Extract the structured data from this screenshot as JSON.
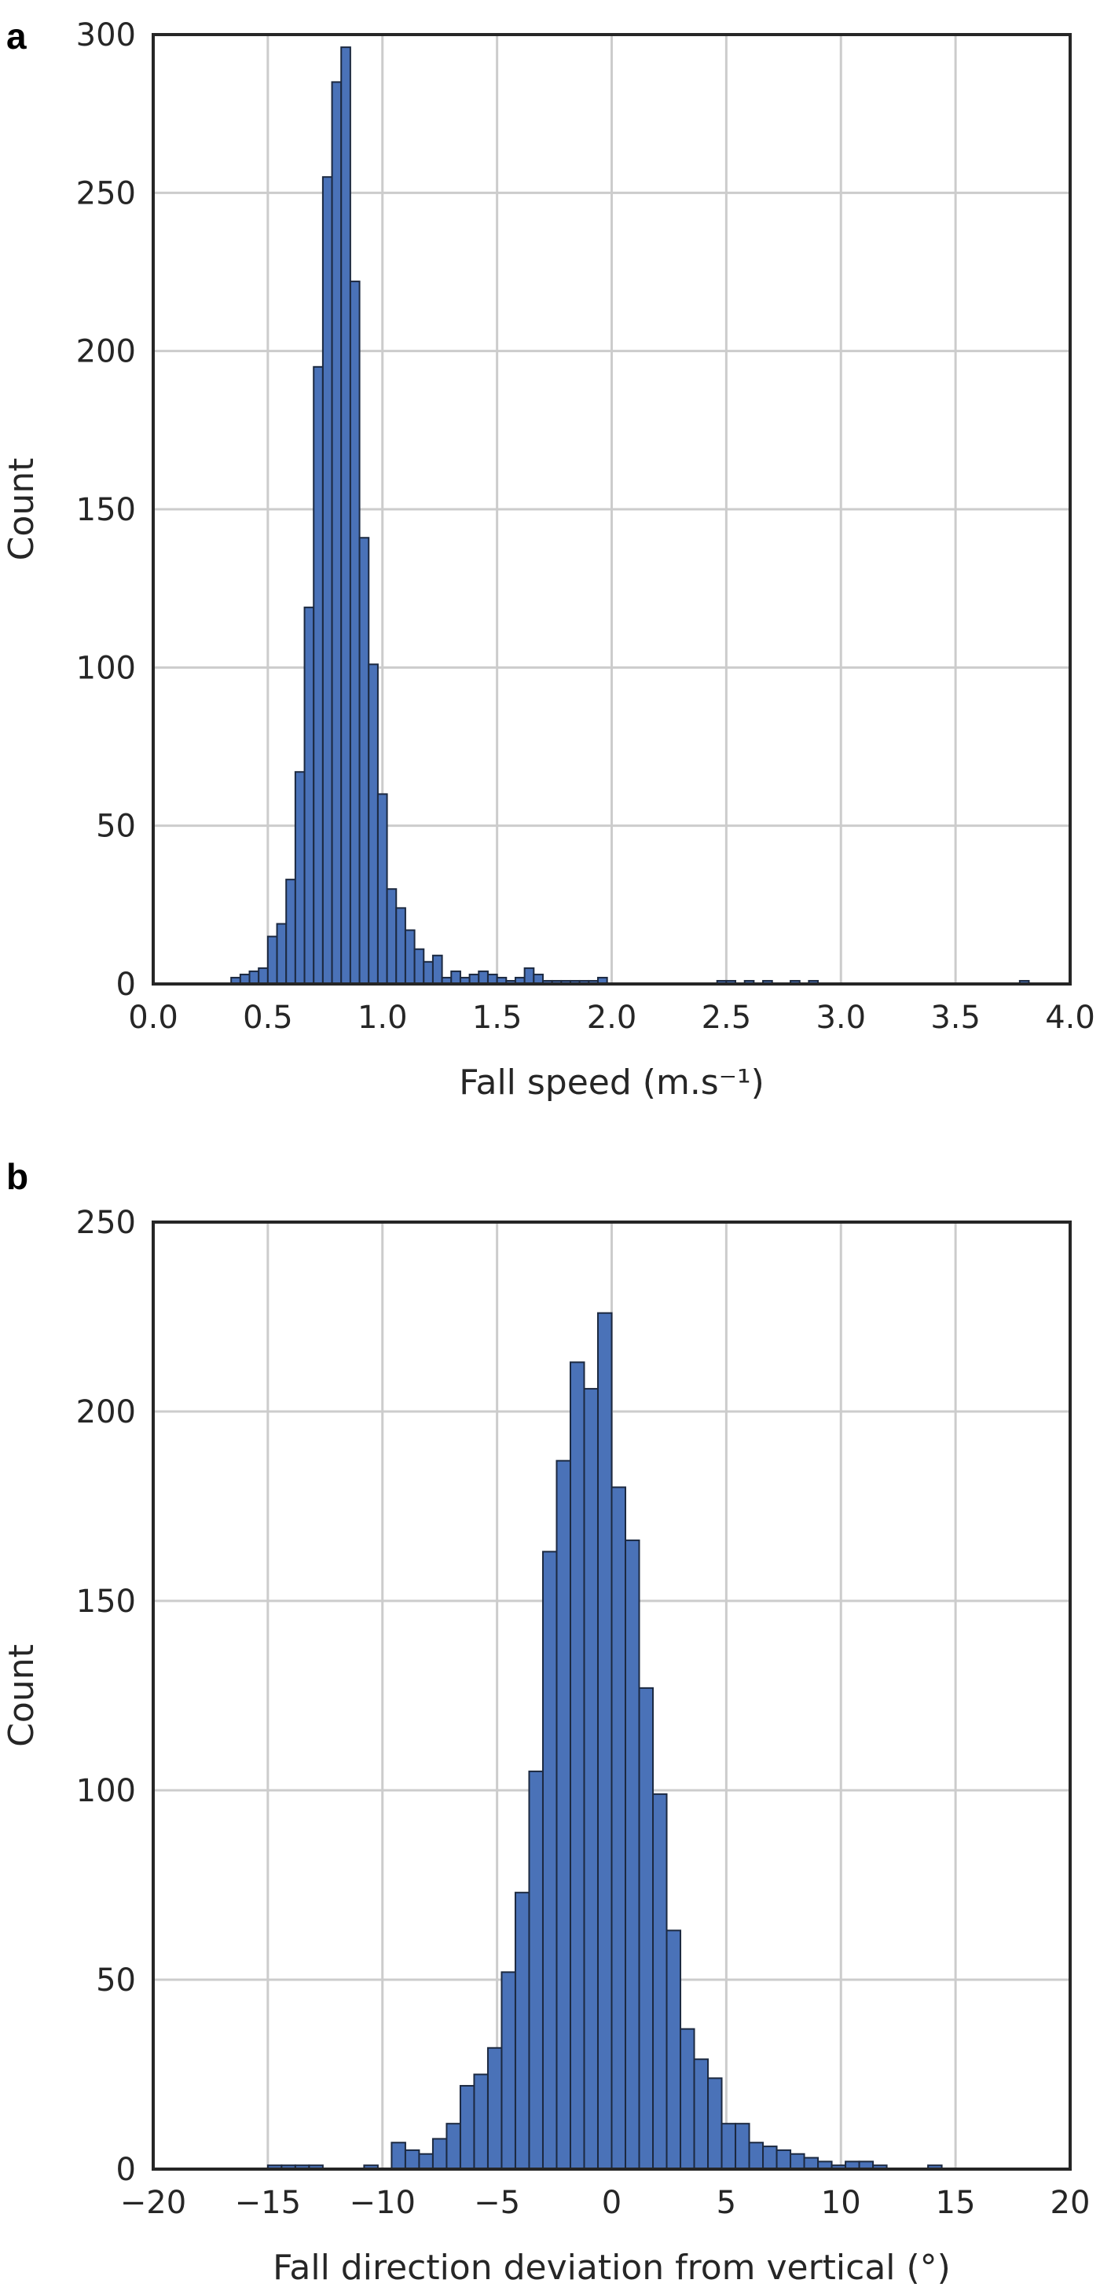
{
  "colors": {
    "bar_fill": "#4a72b8",
    "bar_edge": "#1c2940",
    "grid": "#cccccc",
    "axis": "#262626"
  },
  "chart_data": [
    {
      "type": "bar",
      "panel_label": "a",
      "xlabel": "Fall speed (m.s⁻¹)",
      "ylabel": "Count",
      "xlim": [
        0.0,
        4.0
      ],
      "ylim": [
        0,
        300
      ],
      "xticks": [
        "0.0",
        "0.5",
        "1.0",
        "1.5",
        "2.0",
        "2.5",
        "3.0",
        "3.5",
        "4.0"
      ],
      "yticks": [
        "0",
        "50",
        "100",
        "150",
        "200",
        "250",
        "300"
      ],
      "grid": true,
      "bin_width": 0.04,
      "x": [
        0.36,
        0.4,
        0.44,
        0.48,
        0.52,
        0.56,
        0.6,
        0.64,
        0.68,
        0.72,
        0.76,
        0.8,
        0.84,
        0.88,
        0.92,
        0.96,
        1.0,
        1.04,
        1.08,
        1.12,
        1.16,
        1.2,
        1.24,
        1.28,
        1.32,
        1.36,
        1.4,
        1.44,
        1.48,
        1.52,
        1.56,
        1.6,
        1.64,
        1.68,
        1.72,
        1.76,
        1.8,
        1.84,
        1.88,
        1.92,
        1.96,
        2.48,
        2.52,
        2.6,
        2.68,
        2.8,
        2.88,
        3.8
      ],
      "values": [
        2,
        3,
        4,
        5,
        15,
        19,
        33,
        67,
        119,
        195,
        255,
        285,
        296,
        222,
        141,
        101,
        60,
        30,
        24,
        17,
        11,
        7,
        9,
        2,
        4,
        2,
        3,
        4,
        3,
        2,
        1,
        2,
        5,
        3,
        1,
        1,
        1,
        1,
        1,
        1,
        2,
        1,
        1,
        1,
        1,
        1,
        1,
        1
      ]
    },
    {
      "type": "bar",
      "panel_label": "b",
      "xlabel": "Fall direction deviation from vertical (°)",
      "ylabel": "Count",
      "xlim": [
        -20,
        20
      ],
      "ylim": [
        0,
        250
      ],
      "xticks": [
        "−20",
        "−15",
        "−10",
        "−5",
        "0",
        "5",
        "10",
        "15",
        "20"
      ],
      "yticks": [
        "0",
        "50",
        "100",
        "150",
        "200",
        "250"
      ],
      "grid": true,
      "bin_width": 0.6,
      "x": [
        -14.7,
        -14.1,
        -13.5,
        -12.9,
        -10.5,
        -9.3,
        -8.7,
        -8.1,
        -7.5,
        -6.9,
        -6.3,
        -5.7,
        -5.1,
        -4.5,
        -3.9,
        -3.3,
        -2.7,
        -2.1,
        -1.5,
        -0.9,
        -0.3,
        0.3,
        0.9,
        1.5,
        2.1,
        2.7,
        3.3,
        3.9,
        4.5,
        5.1,
        5.7,
        6.3,
        6.9,
        7.5,
        8.1,
        8.7,
        9.3,
        9.9,
        10.5,
        11.1,
        11.7,
        14.1
      ],
      "values": [
        1,
        1,
        1,
        1,
        1,
        7,
        5,
        4,
        8,
        12,
        22,
        25,
        32,
        52,
        73,
        105,
        163,
        187,
        213,
        206,
        226,
        180,
        166,
        127,
        99,
        63,
        37,
        29,
        24,
        12,
        12,
        7,
        6,
        5,
        4,
        3,
        2,
        1,
        2,
        2,
        1,
        1
      ]
    }
  ]
}
